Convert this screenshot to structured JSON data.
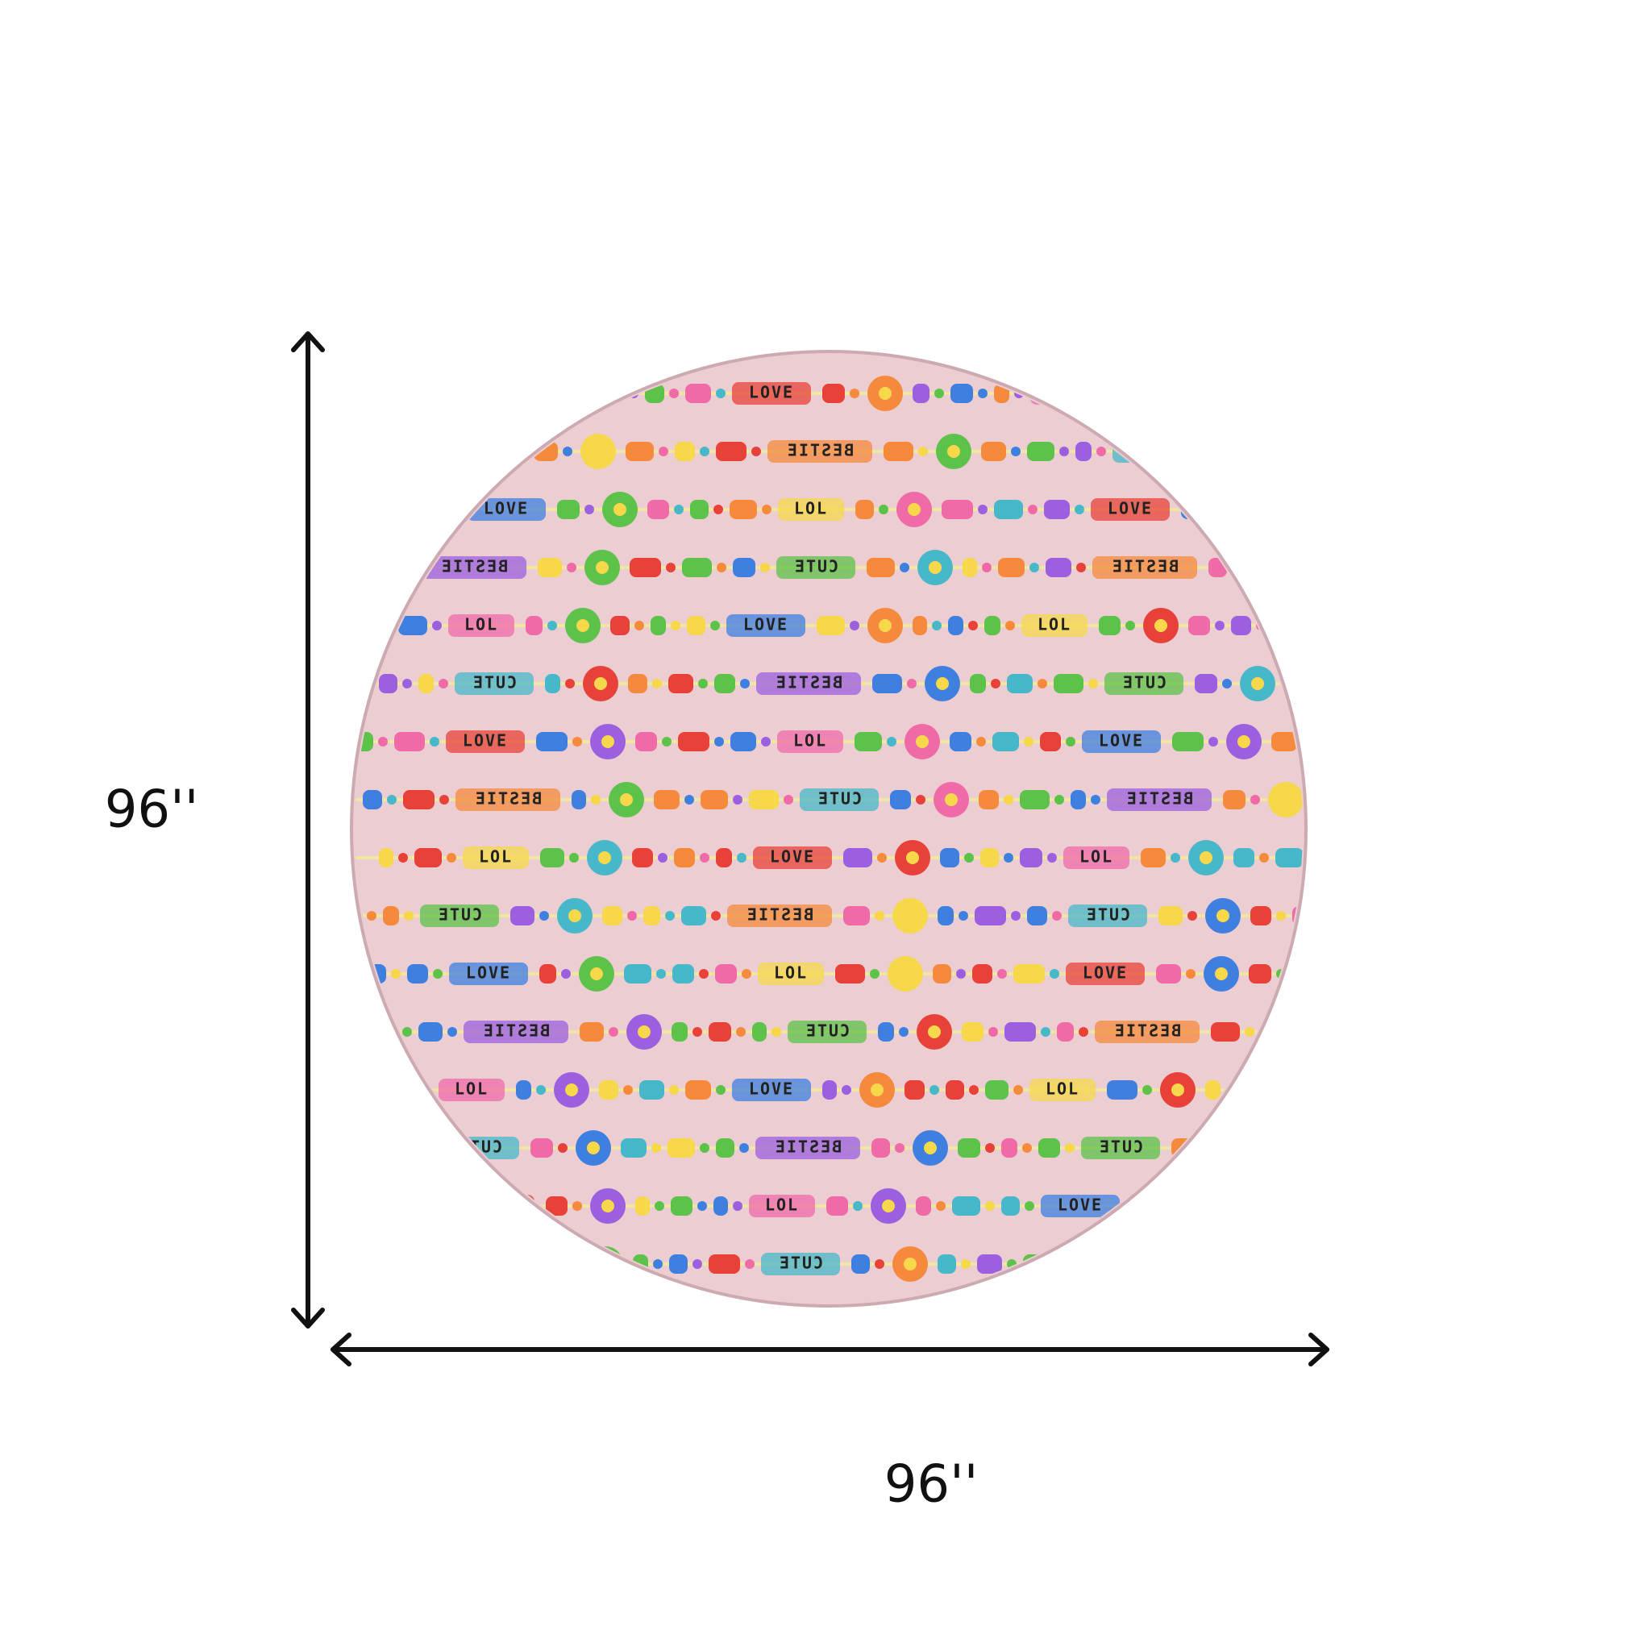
{
  "dimensions": {
    "height_label": "96''",
    "width_label": "96''"
  },
  "rug": {
    "words": [
      "LOVE",
      "BESTIE",
      "LOL",
      "CUTE"
    ]
  }
}
